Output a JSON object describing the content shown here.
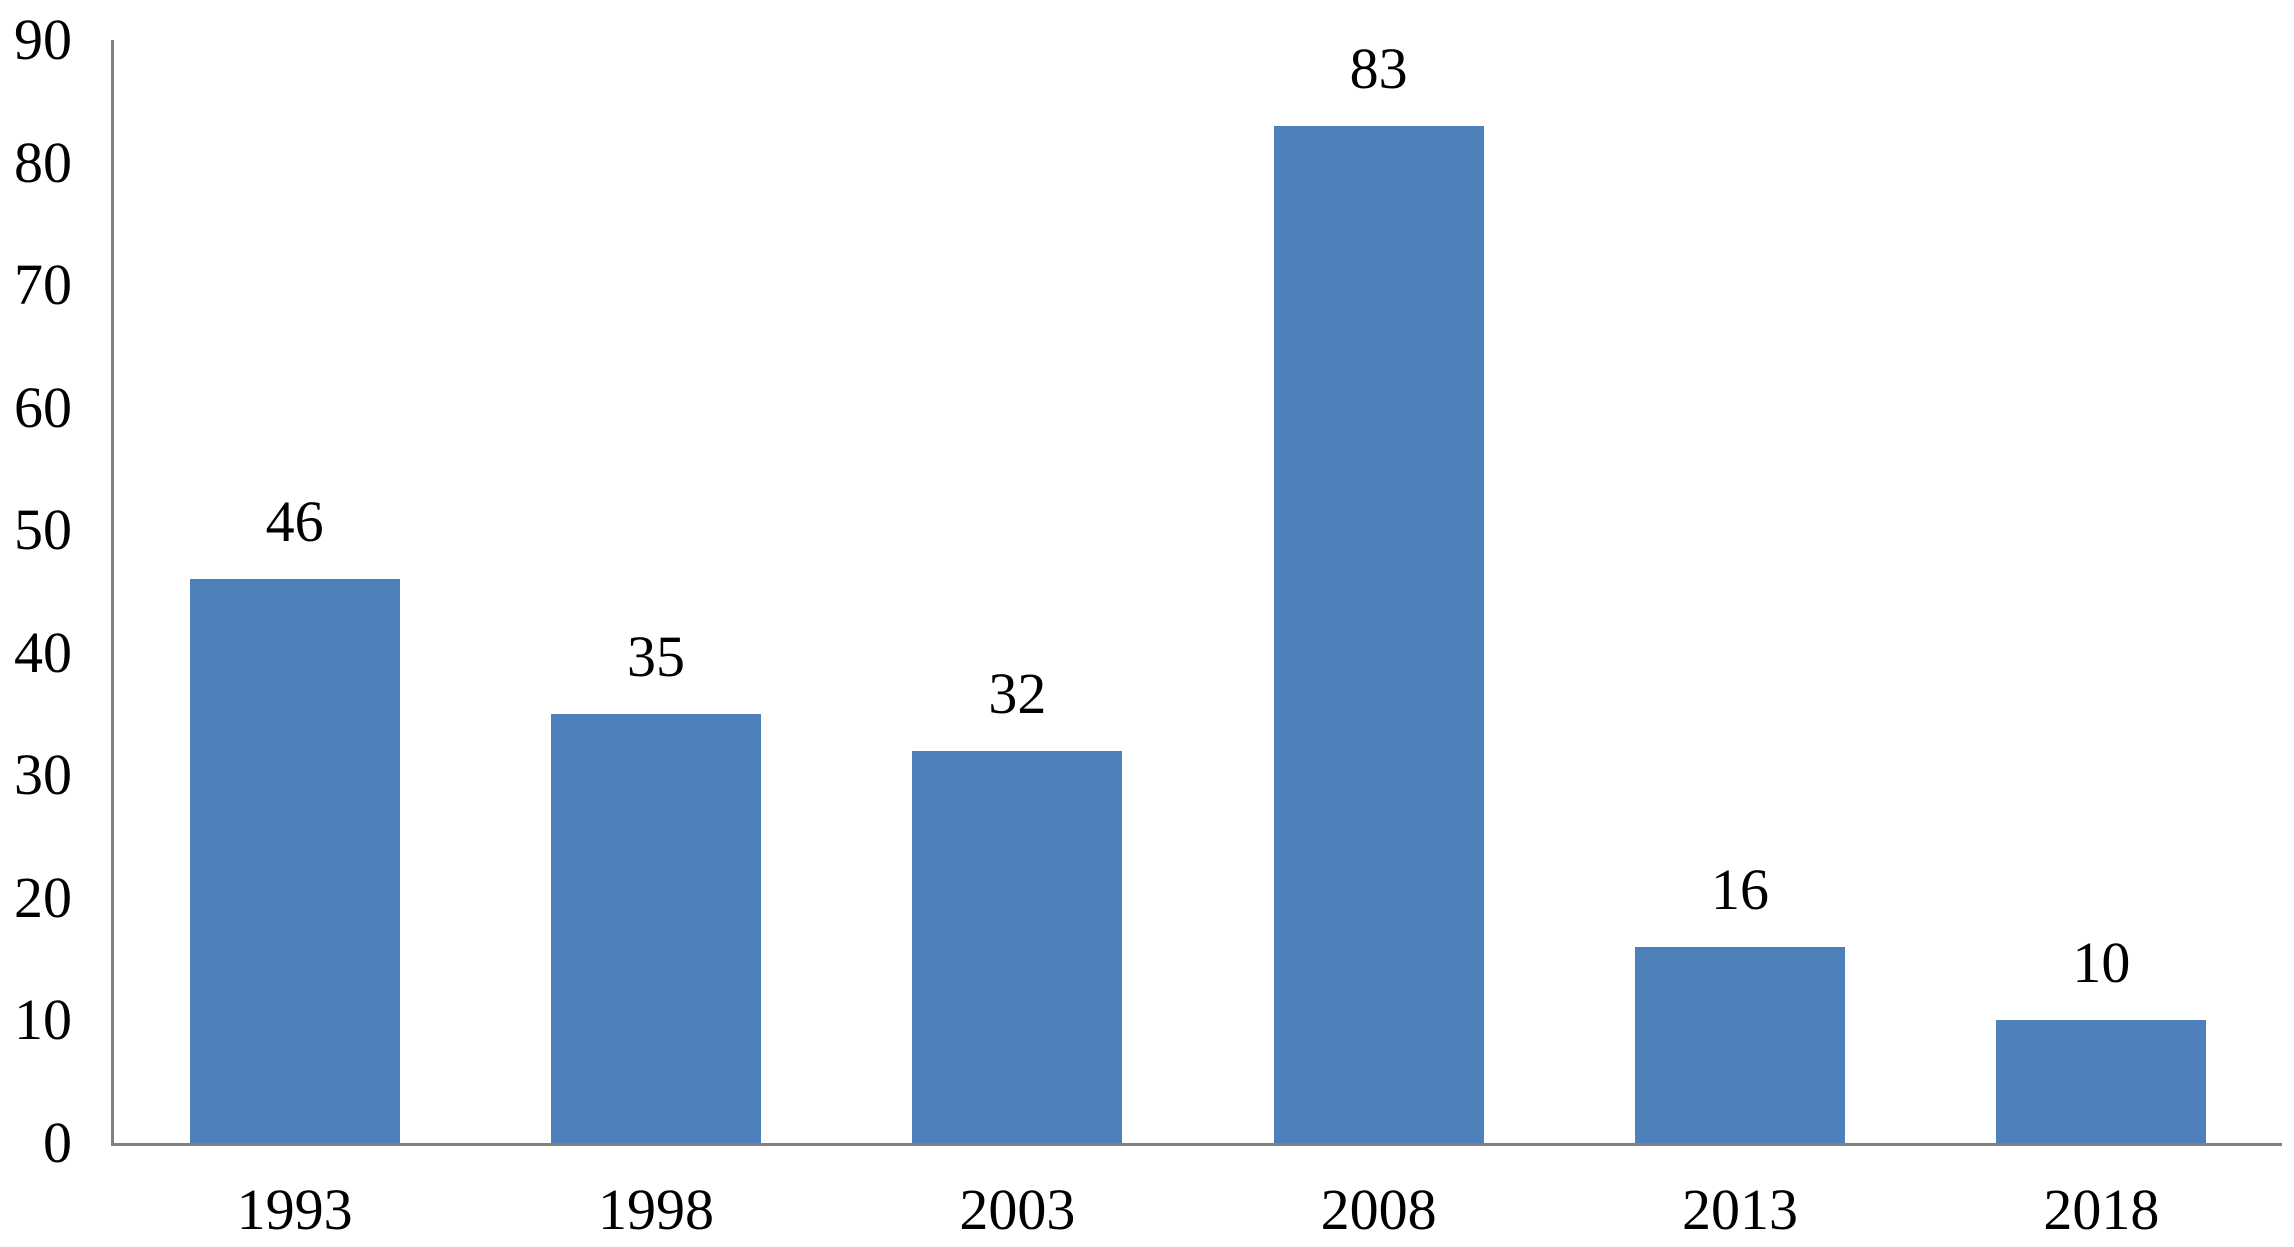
{
  "chart_data": {
    "type": "bar",
    "categories": [
      "1993",
      "1998",
      "2003",
      "2008",
      "2013",
      "2018"
    ],
    "values": [
      46,
      35,
      32,
      83,
      16,
      10
    ],
    "data_labels": [
      "46",
      "35",
      "32",
      "83",
      "16",
      "10"
    ],
    "yticks": [
      0,
      10,
      20,
      30,
      40,
      50,
      60,
      70,
      80,
      90
    ],
    "ylim": [
      0,
      90
    ],
    "grid": false,
    "legend_position": "none",
    "bar_color": "#4E80BC",
    "axis_color": "#808080",
    "text_color": "#000000"
  }
}
